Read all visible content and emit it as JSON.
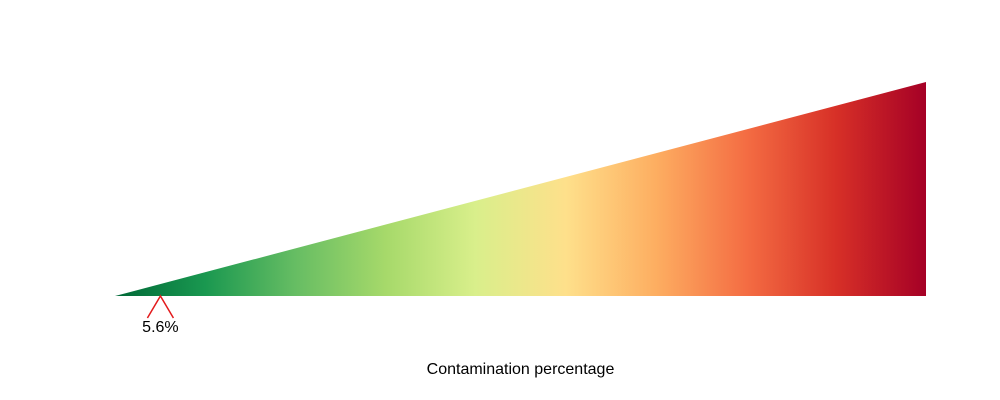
{
  "chart_data": {
    "type": "gauge",
    "xlabel": "Contamination percentage",
    "xlim": [
      0,
      100
    ],
    "marker": {
      "value": 5.6,
      "label": "5.6%",
      "color": "#e31a1c"
    },
    "colors": {
      "gradient_stops": [
        "#006837",
        "#1a9850",
        "#66bd63",
        "#a6d96a",
        "#d9ef8b",
        "#fee08b",
        "#fdae61",
        "#f46d43",
        "#d73027",
        "#a50026"
      ]
    }
  }
}
